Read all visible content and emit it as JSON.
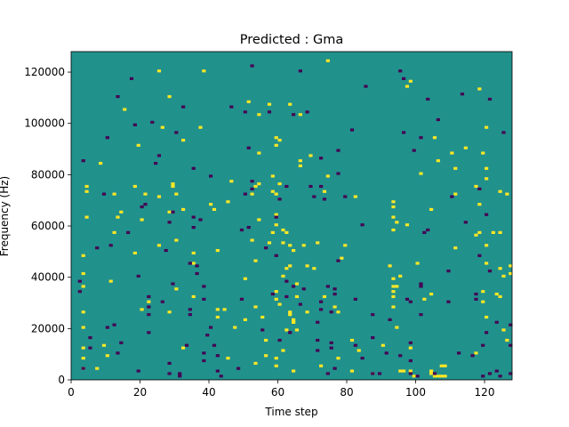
{
  "chart_data": {
    "type": "heatmap",
    "title": "Predicted : Gma",
    "xlabel": "Time step",
    "ylabel": "Frequency (Hz)",
    "xlim": [
      0,
      128
    ],
    "ylim": [
      0,
      128000
    ],
    "x_ticks": [
      0,
      20,
      40,
      60,
      80,
      100,
      120
    ],
    "y_ticks": [
      0,
      20000,
      40000,
      60000,
      80000,
      100000,
      120000
    ],
    "grid": false,
    "colormap": "viridis",
    "colors": {
      "background": "#21918c",
      "low": "#440154",
      "high": "#fde725"
    },
    "background_value": 0.5,
    "cells": {
      "high": [
        [
          3,
          4
        ],
        [
          3,
          8
        ],
        [
          3,
          12
        ],
        [
          3,
          20
        ],
        [
          3,
          26
        ],
        [
          3,
          36
        ],
        [
          3,
          48
        ],
        [
          4,
          73
        ],
        [
          4,
          75
        ],
        [
          4,
          63
        ],
        [
          3,
          41
        ],
        [
          7,
          4
        ],
        [
          8,
          84
        ],
        [
          9,
          13
        ],
        [
          10,
          9
        ],
        [
          11,
          38
        ],
        [
          12,
          57
        ],
        [
          12,
          72
        ],
        [
          13,
          63
        ],
        [
          14,
          65
        ],
        [
          15,
          105
        ],
        [
          18,
          49
        ],
        [
          18,
          75
        ],
        [
          19,
          91
        ],
        [
          20,
          27
        ],
        [
          20,
          62
        ],
        [
          21,
          72
        ],
        [
          22,
          30
        ],
        [
          25,
          52
        ],
        [
          25,
          71
        ],
        [
          25,
          120
        ],
        [
          26,
          98
        ],
        [
          28,
          26
        ],
        [
          28,
          110
        ],
        [
          28,
          65
        ],
        [
          29,
          76
        ],
        [
          29,
          75
        ],
        [
          30,
          54
        ],
        [
          30,
          72
        ],
        [
          30,
          35
        ],
        [
          32,
          12
        ],
        [
          32,
          93
        ],
        [
          32,
          66
        ],
        [
          35,
          32
        ],
        [
          35,
          45
        ],
        [
          35,
          49
        ],
        [
          37,
          98
        ],
        [
          38,
          120
        ],
        [
          40,
          68
        ],
        [
          42,
          24
        ],
        [
          42,
          27
        ],
        [
          41,
          66
        ],
        [
          42,
          50
        ],
        [
          44,
          27
        ],
        [
          45,
          69
        ],
        [
          45,
          8
        ],
        [
          46,
          77
        ],
        [
          47,
          20
        ],
        [
          50,
          23
        ],
        [
          50,
          39
        ],
        [
          51,
          108
        ],
        [
          52,
          54
        ],
        [
          53,
          46
        ],
        [
          52,
          72
        ],
        [
          53,
          75
        ],
        [
          53,
          6
        ],
        [
          53,
          28
        ],
        [
          54,
          76
        ],
        [
          54,
          62
        ],
        [
          54,
          103
        ],
        [
          54,
          88
        ],
        [
          55,
          24
        ],
        [
          56,
          15
        ],
        [
          56,
          9
        ],
        [
          57,
          53
        ],
        [
          57,
          107
        ],
        [
          58,
          57
        ],
        [
          58,
          73
        ],
        [
          58,
          79
        ],
        [
          59,
          5
        ],
        [
          59,
          8
        ],
        [
          59,
          31
        ],
        [
          59,
          34
        ],
        [
          59,
          60
        ],
        [
          59,
          64
        ],
        [
          59,
          72
        ],
        [
          59,
          91
        ],
        [
          59,
          94
        ],
        [
          60,
          93
        ],
        [
          60,
          29
        ],
        [
          60,
          76
        ],
        [
          61,
          40
        ],
        [
          61,
          53
        ],
        [
          61,
          11
        ],
        [
          61,
          58
        ],
        [
          62,
          19
        ],
        [
          62,
          43
        ],
        [
          62,
          57
        ],
        [
          63,
          44
        ],
        [
          63,
          26
        ],
        [
          63,
          25
        ],
        [
          63,
          52
        ],
        [
          63,
          107
        ],
        [
          64,
          50
        ],
        [
          64,
          22
        ],
        [
          64,
          23
        ],
        [
          64,
          3
        ],
        [
          64,
          22
        ],
        [
          65,
          19
        ],
        [
          65,
          37
        ],
        [
          65,
          32
        ],
        [
          66,
          103
        ],
        [
          66,
          83
        ],
        [
          66,
          85
        ],
        [
          67,
          52
        ],
        [
          68,
          26
        ],
        [
          68,
          44
        ],
        [
          69,
          87
        ],
        [
          70,
          43
        ],
        [
          71,
          53
        ],
        [
          72,
          5
        ],
        [
          73,
          73
        ],
        [
          73,
          32
        ],
        [
          74,
          79
        ],
        [
          74,
          124
        ],
        [
          76,
          28
        ],
        [
          77,
          8
        ],
        [
          77,
          26
        ],
        [
          78,
          47
        ],
        [
          79,
          52
        ],
        [
          81,
          15
        ],
        [
          81,
          3
        ],
        [
          82,
          71
        ],
        [
          83,
          11
        ],
        [
          87,
          2
        ],
        [
          90,
          13
        ],
        [
          92,
          44
        ],
        [
          93,
          39
        ],
        [
          93,
          34
        ],
        [
          93,
          28
        ],
        [
          93,
          36
        ],
        [
          93,
          67
        ],
        [
          93,
          69
        ],
        [
          93,
          63
        ],
        [
          93,
          58
        ],
        [
          94,
          61
        ],
        [
          93,
          32
        ],
        [
          94,
          36
        ],
        [
          94,
          20
        ],
        [
          95,
          40
        ],
        [
          95,
          3
        ],
        [
          96,
          3
        ],
        [
          97,
          60
        ],
        [
          97,
          114
        ],
        [
          98,
          12
        ],
        [
          98,
          3
        ],
        [
          98,
          116
        ],
        [
          99,
          1
        ],
        [
          100,
          45
        ],
        [
          101,
          80
        ],
        [
          102,
          31
        ],
        [
          104,
          33
        ],
        [
          104,
          2
        ],
        [
          104,
          3
        ],
        [
          105,
          1
        ],
        [
          106,
          1
        ],
        [
          107,
          1
        ],
        [
          108,
          1
        ],
        [
          104,
          66
        ],
        [
          105,
          94
        ],
        [
          106,
          85
        ],
        [
          107,
          5
        ],
        [
          108,
          5
        ],
        [
          110,
          88
        ],
        [
          111,
          82
        ],
        [
          111,
          72
        ],
        [
          111,
          51
        ],
        [
          114,
          90
        ],
        [
          117,
          10
        ],
        [
          117,
          56
        ],
        [
          117,
          75
        ],
        [
          118,
          68
        ],
        [
          118,
          113
        ],
        [
          118,
          57
        ],
        [
          119,
          30
        ],
        [
          119,
          88
        ],
        [
          119,
          34
        ],
        [
          120,
          45
        ],
        [
          120,
          52
        ],
        [
          120,
          82
        ],
        [
          120,
          78
        ],
        [
          120,
          24
        ],
        [
          120,
          98
        ],
        [
          122,
          57
        ],
        [
          123,
          33
        ],
        [
          124,
          73
        ],
        [
          124,
          32
        ],
        [
          124,
          43
        ],
        [
          124,
          57
        ],
        [
          125,
          40
        ],
        [
          125,
          19
        ],
        [
          126,
          15
        ],
        [
          126,
          72
        ],
        [
          127,
          44
        ],
        [
          127,
          41
        ]
      ],
      "low": [
        [
          2,
          38
        ],
        [
          2,
          34
        ],
        [
          3,
          4
        ],
        [
          5,
          16
        ],
        [
          5,
          12
        ],
        [
          3,
          85
        ],
        [
          7,
          51
        ],
        [
          9,
          72
        ],
        [
          10,
          20
        ],
        [
          10,
          94
        ],
        [
          11,
          52
        ],
        [
          12,
          21
        ],
        [
          13,
          10
        ],
        [
          13,
          110
        ],
        [
          14,
          14
        ],
        [
          16,
          57
        ],
        [
          17,
          117
        ],
        [
          18,
          99
        ],
        [
          19,
          3
        ],
        [
          19,
          40
        ],
        [
          20,
          67
        ],
        [
          21,
          68
        ],
        [
          22,
          18
        ],
        [
          22,
          28
        ],
        [
          22,
          32
        ],
        [
          22,
          25
        ],
        [
          23,
          100
        ],
        [
          24,
          84
        ],
        [
          25,
          87
        ],
        [
          26,
          30
        ],
        [
          27,
          50
        ],
        [
          28,
          2
        ],
        [
          28,
          6
        ],
        [
          28,
          61
        ],
        [
          29,
          37
        ],
        [
          29,
          65
        ],
        [
          30,
          96
        ],
        [
          31,
          1
        ],
        [
          31,
          2
        ],
        [
          32,
          106
        ],
        [
          33,
          13
        ],
        [
          34,
          45
        ],
        [
          34,
          25
        ],
        [
          34,
          27
        ],
        [
          35,
          82
        ],
        [
          35,
          63
        ],
        [
          35,
          59
        ],
        [
          36,
          41
        ],
        [
          36,
          44
        ],
        [
          37,
          62
        ],
        [
          38,
          10
        ],
        [
          38,
          7
        ],
        [
          38,
          31
        ],
        [
          38,
          36
        ],
        [
          39,
          17
        ],
        [
          40,
          20
        ],
        [
          40,
          79
        ],
        [
          41,
          13
        ],
        [
          42,
          9
        ],
        [
          42,
          3
        ],
        [
          43,
          1
        ],
        [
          46,
          106
        ],
        [
          48,
          4
        ],
        [
          49,
          58
        ],
        [
          49,
          31
        ],
        [
          50,
          104
        ],
        [
          50,
          72
        ],
        [
          51,
          59
        ],
        [
          51,
          90
        ],
        [
          52,
          74
        ],
        [
          52,
          77
        ],
        [
          52,
          122
        ],
        [
          55,
          19
        ],
        [
          56,
          51
        ],
        [
          57,
          104
        ],
        [
          58,
          33
        ],
        [
          59,
          48
        ],
        [
          59,
          63
        ],
        [
          60,
          15
        ],
        [
          60,
          70
        ],
        [
          62,
          38
        ],
        [
          62,
          75
        ],
        [
          62,
          32
        ],
        [
          63,
          18
        ],
        [
          64,
          36
        ],
        [
          64,
          103
        ],
        [
          66,
          29
        ],
        [
          66,
          120
        ],
        [
          67,
          35
        ],
        [
          68,
          104
        ],
        [
          69,
          75
        ],
        [
          70,
          71
        ],
        [
          71,
          22
        ],
        [
          71,
          11
        ],
        [
          71,
          15
        ],
        [
          72,
          75
        ],
        [
          72,
          27
        ],
        [
          72,
          30
        ],
        [
          72,
          86
        ],
        [
          73,
          70
        ],
        [
          74,
          36
        ],
        [
          74,
          2
        ],
        [
          75,
          12
        ],
        [
          75,
          14
        ],
        [
          75,
          26
        ],
        [
          76,
          35
        ],
        [
          76,
          4
        ],
        [
          76,
          33
        ],
        [
          77,
          46
        ],
        [
          77,
          80
        ],
        [
          77,
          89
        ],
        [
          79,
          71
        ],
        [
          81,
          97
        ],
        [
          82,
          13
        ],
        [
          82,
          31
        ],
        [
          84,
          8
        ],
        [
          84,
          60
        ],
        [
          85,
          114
        ],
        [
          87,
          16
        ],
        [
          87,
          2
        ],
        [
          87,
          25
        ],
        [
          89,
          2
        ],
        [
          91,
          10
        ],
        [
          92,
          23
        ],
        [
          95,
          9
        ],
        [
          95,
          120
        ],
        [
          96,
          96
        ],
        [
          96,
          117
        ],
        [
          97,
          31
        ],
        [
          98,
          30
        ],
        [
          98,
          7
        ],
        [
          98,
          14
        ],
        [
          98,
          2
        ],
        [
          99,
          89
        ],
        [
          100,
          1
        ],
        [
          101,
          36
        ],
        [
          101,
          37
        ],
        [
          101,
          25
        ],
        [
          101,
          94
        ],
        [
          102,
          57
        ],
        [
          103,
          58
        ],
        [
          103,
          109
        ],
        [
          105,
          2
        ],
        [
          106,
          101
        ],
        [
          109,
          30
        ],
        [
          109,
          42
        ],
        [
          110,
          71
        ],
        [
          112,
          10
        ],
        [
          113,
          111
        ],
        [
          114,
          61
        ],
        [
          116,
          9
        ],
        [
          117,
          33
        ],
        [
          117,
          31
        ],
        [
          118,
          48
        ],
        [
          118,
          74
        ],
        [
          119,
          13
        ],
        [
          119,
          1
        ],
        [
          120,
          18
        ],
        [
          120,
          64
        ],
        [
          121,
          2
        ],
        [
          121,
          109
        ],
        [
          121,
          42
        ],
        [
          123,
          22
        ],
        [
          123,
          3
        ],
        [
          124,
          1
        ],
        [
          125,
          96
        ],
        [
          127,
          2
        ],
        [
          127,
          13
        ],
        [
          127,
          21
        ]
      ]
    }
  }
}
